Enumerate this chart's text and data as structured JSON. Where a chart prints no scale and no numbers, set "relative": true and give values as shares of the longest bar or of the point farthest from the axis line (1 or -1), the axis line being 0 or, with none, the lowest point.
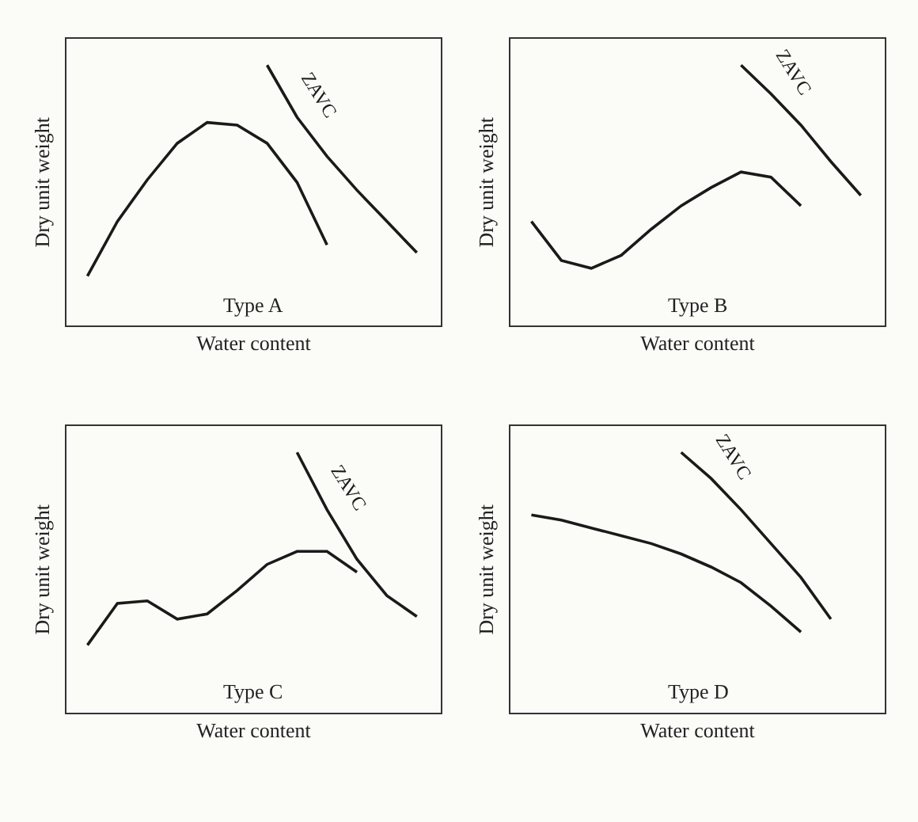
{
  "chart_data": [
    {
      "type": "line",
      "relative": true,
      "xlabel": "Water content",
      "ylabel": "Dry unit weight",
      "annotations": [
        "Type A"
      ],
      "categories": [
        null,
        null,
        null,
        null,
        null,
        null,
        null,
        null,
        null,
        null,
        null,
        null
      ],
      "grid": false,
      "legend": false,
      "marker": "none",
      "line_style": "solid",
      "series": [
        {
          "color": "#1a1a1a",
          "values": [
            0.19,
            0.4,
            0.56,
            0.7,
            0.78,
            0.77,
            0.7,
            0.55,
            0.31,
            null,
            null,
            null
          ]
        },
        {
          "name": "ZAVC",
          "color": "#1a1a1a",
          "values": [
            null,
            null,
            null,
            null,
            null,
            null,
            1,
            0.8,
            0.65,
            0.52,
            0.4,
            0.28
          ]
        }
      ]
    },
    {
      "type": "line",
      "relative": true,
      "xlabel": "Water content",
      "ylabel": "Dry unit weight",
      "annotations": [
        "Type B"
      ],
      "categories": [
        null,
        null,
        null,
        null,
        null,
        null,
        null,
        null,
        null,
        null,
        null,
        null
      ],
      "grid": false,
      "legend": false,
      "marker": "none",
      "line_style": "solid",
      "series": [
        {
          "color": "#1a1a1a",
          "values": [
            0.4,
            0.25,
            0.22,
            0.27,
            0.37,
            0.46,
            0.53,
            0.59,
            0.57,
            0.46,
            null,
            null
          ]
        },
        {
          "name": "ZAVC",
          "color": "#1a1a1a",
          "values": [
            null,
            null,
            null,
            null,
            null,
            null,
            null,
            1,
            0.89,
            0.77,
            0.63,
            0.5
          ]
        }
      ]
    },
    {
      "type": "line",
      "relative": true,
      "xlabel": "Water content",
      "ylabel": "Dry unit weight",
      "annotations": [
        "Type C"
      ],
      "categories": [
        null,
        null,
        null,
        null,
        null,
        null,
        null,
        null,
        null,
        null,
        null,
        null
      ],
      "grid": false,
      "legend": false,
      "marker": "none",
      "line_style": "solid",
      "series": [
        {
          "color": "#1a1a1a",
          "values": [
            0.26,
            0.42,
            0.43,
            0.36,
            0.38,
            0.47,
            0.57,
            0.62,
            0.62,
            0.54,
            null,
            null
          ]
        },
        {
          "name": "ZAVC",
          "color": "#1a1a1a",
          "values": [
            null,
            null,
            null,
            null,
            null,
            null,
            null,
            1,
            0.78,
            0.59,
            0.45,
            0.37
          ]
        }
      ]
    },
    {
      "type": "line",
      "relative": true,
      "xlabel": "Water content",
      "ylabel": "Dry unit weight",
      "annotations": [
        "Type D"
      ],
      "categories": [
        null,
        null,
        null,
        null,
        null,
        null,
        null,
        null,
        null,
        null,
        null,
        null
      ],
      "grid": false,
      "legend": false,
      "marker": "none",
      "line_style": "solid",
      "series": [
        {
          "color": "#1a1a1a",
          "values": [
            0.76,
            0.74,
            0.71,
            0.68,
            0.65,
            0.61,
            0.56,
            0.5,
            0.41,
            0.31,
            null,
            null
          ]
        },
        {
          "name": "ZAVC",
          "color": "#1a1a1a",
          "values": [
            null,
            null,
            null,
            null,
            null,
            1,
            0.9,
            0.78,
            0.65,
            0.52,
            0.36,
            null
          ]
        }
      ]
    }
  ]
}
